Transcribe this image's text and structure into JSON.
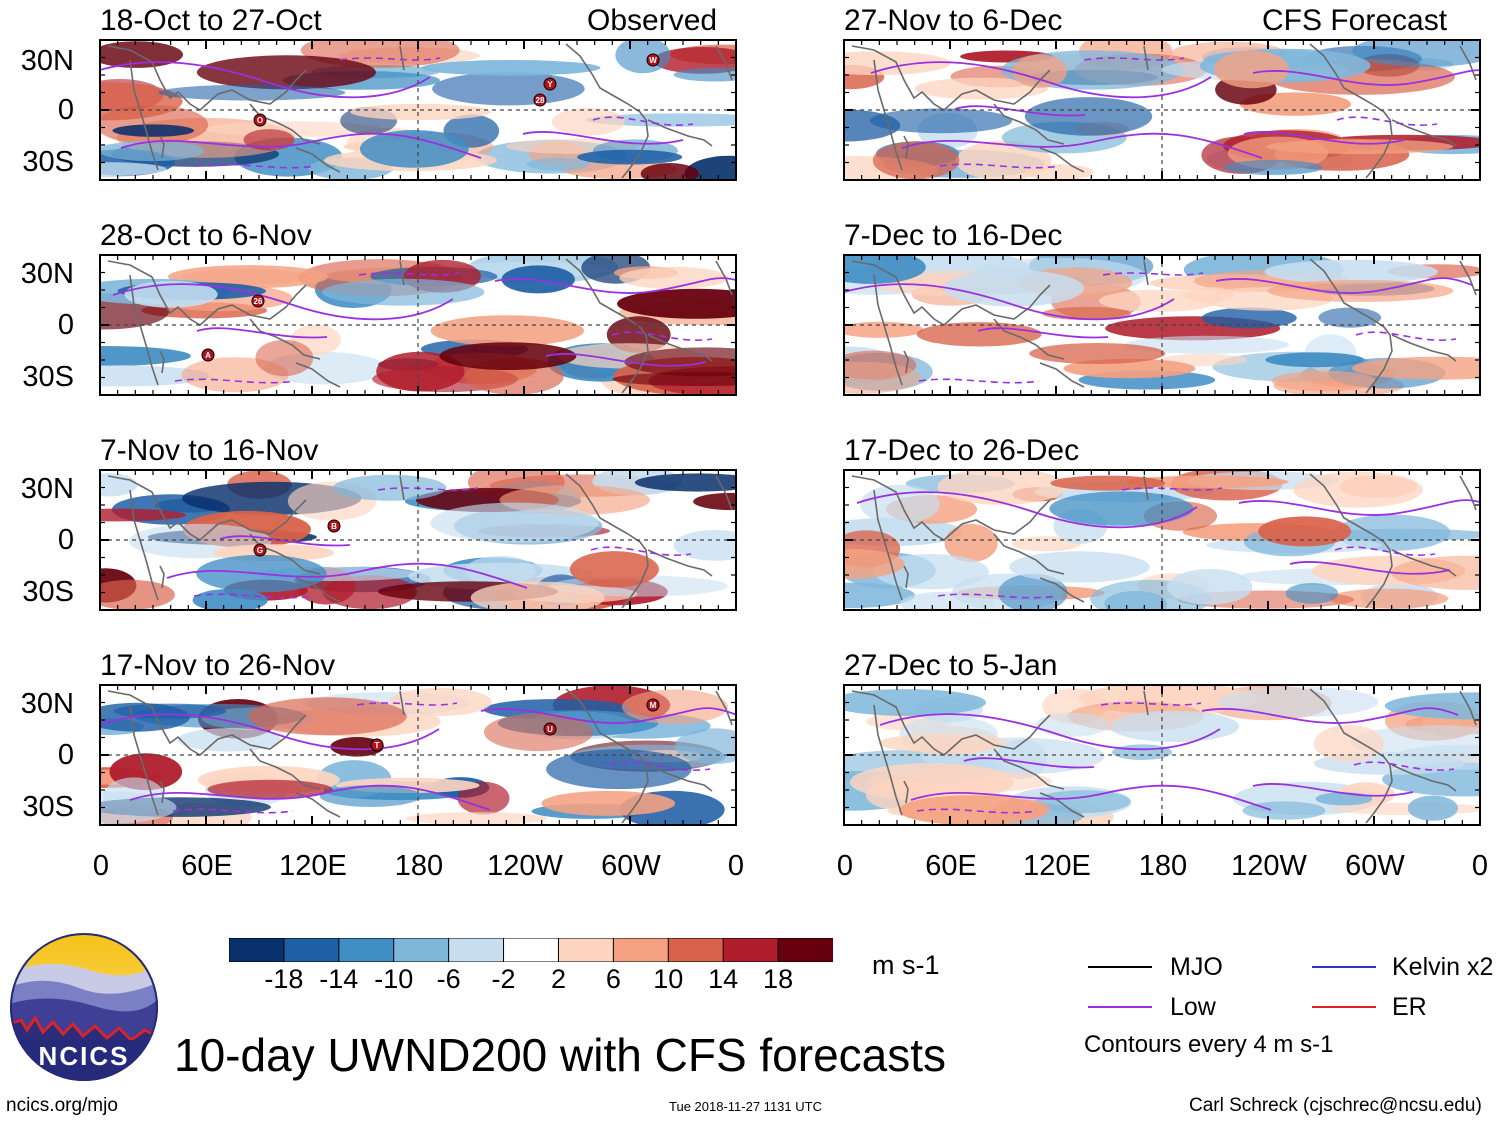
{
  "chart_data": {
    "type": "heatmap",
    "variable": "UWND200",
    "title": "10-day UWND200 with CFS forecasts",
    "units": "m s-1",
    "xlabels": [
      "0",
      "60E",
      "120E",
      "180",
      "120W",
      "60W",
      "0"
    ],
    "ylabels": [
      "30N",
      "0",
      "30S"
    ],
    "columns": [
      {
        "header": "Observed",
        "panels": [
          {
            "title": "18-Oct to 27-Oct",
            "storms": [
              "Y",
              "W",
              "28",
              "O"
            ]
          },
          {
            "title": "28-Oct to 6-Nov",
            "storms": [
              "A",
              "26"
            ]
          },
          {
            "title": "7-Nov to 16-Nov",
            "storms": [
              "G",
              "B"
            ]
          },
          {
            "title": "17-Nov to 26-Nov",
            "storms": [
              "T",
              "U",
              "M"
            ]
          }
        ]
      },
      {
        "header": "CFS Forecast",
        "panels": [
          {
            "title": "27-Nov to 6-Dec",
            "storms": []
          },
          {
            "title": "7-Dec to 16-Dec",
            "storms": []
          },
          {
            "title": "17-Dec to 26-Dec",
            "storms": []
          },
          {
            "title": "27-Dec to 5-Jan",
            "storms": []
          }
        ]
      }
    ],
    "colorbar": {
      "ticks": [
        "-18",
        "-14",
        "-10",
        "-6",
        "-2",
        "2",
        "6",
        "10",
        "14",
        "18"
      ],
      "colors": [
        "#08306b",
        "#1f5fa6",
        "#3f8dc4",
        "#7fb7db",
        "#c6def0",
        "#ffffff",
        "#fdd5c0",
        "#f4a282",
        "#d9624a",
        "#b01d2c",
        "#67000d"
      ]
    },
    "legend": {
      "items": [
        {
          "label": "MJO",
          "color": "#000000"
        },
        {
          "label": "Kelvin x2",
          "color": "#2a35c8"
        },
        {
          "label": "Low",
          "color": "#9b30e0"
        },
        {
          "label": "ER",
          "color": "#e02020"
        }
      ],
      "note": "Contours every 4 m s-1"
    }
  },
  "footer": {
    "logo_text": "NCICS",
    "url": "ncics.org/mjo",
    "timestamp": "Tue 2018-11-27 1131 UTC",
    "author": "Carl Schreck (cjschrec@ncsu.edu)"
  }
}
